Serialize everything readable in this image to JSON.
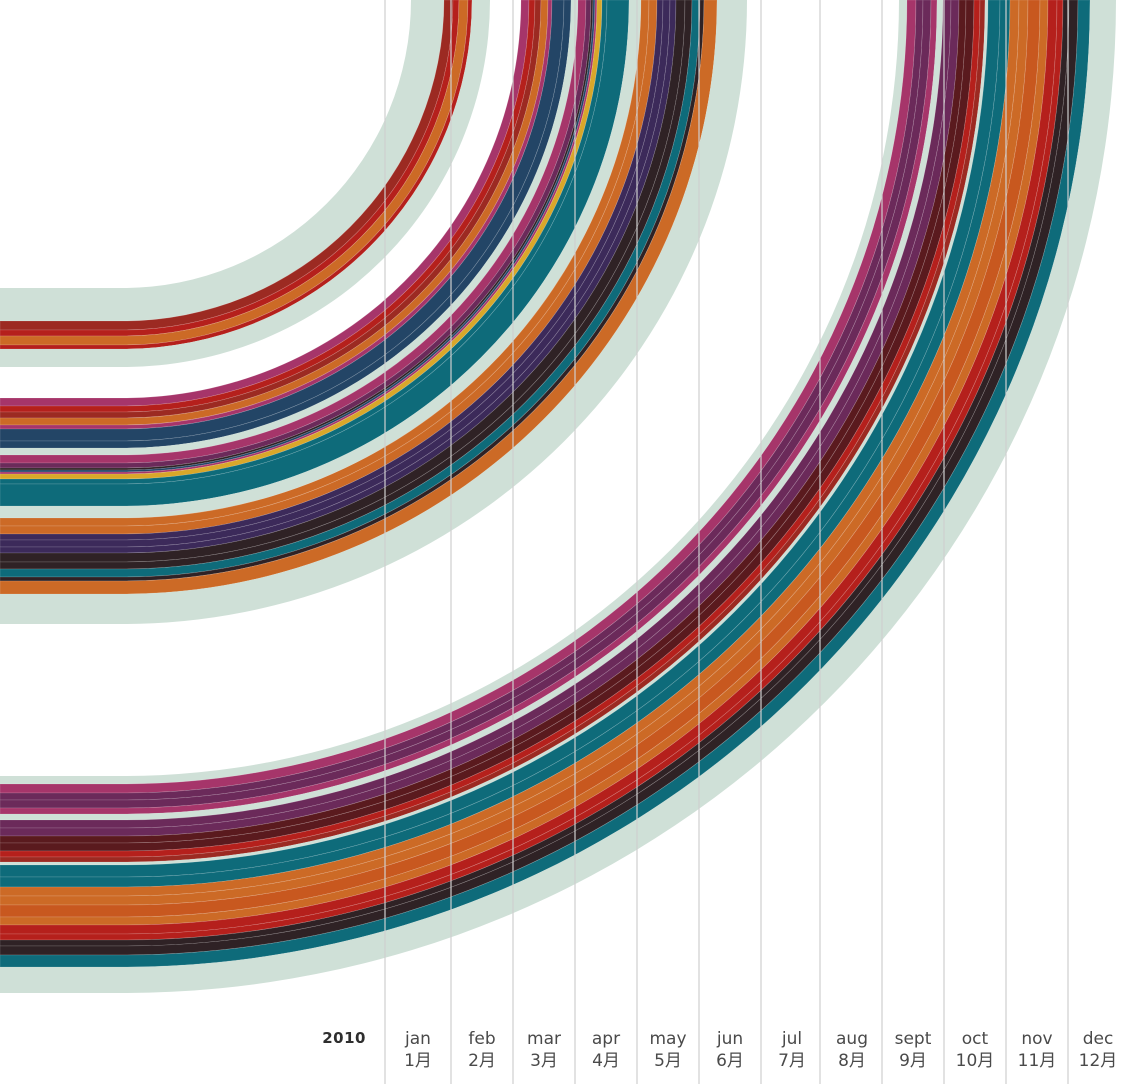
{
  "chart_data": {
    "type": "area",
    "year": "2010",
    "months": [
      {
        "en": "jan",
        "zh": "1月"
      },
      {
        "en": "feb",
        "zh": "2月"
      },
      {
        "en": "mar",
        "zh": "3月"
      },
      {
        "en": "apr",
        "zh": "4月"
      },
      {
        "en": "may",
        "zh": "5月"
      },
      {
        "en": "jun",
        "zh": "6月"
      },
      {
        "en": "jul",
        "zh": "7月"
      },
      {
        "en": "aug",
        "zh": "8月"
      },
      {
        "en": "sept",
        "zh": "9月"
      },
      {
        "en": "oct",
        "zh": "10月"
      },
      {
        "en": "nov",
        "zh": "11月"
      },
      {
        "en": "dec",
        "zh": "12月"
      }
    ],
    "palette": {
      "background_band": "#cfe0d7",
      "red": "#b5201c",
      "brick": "#9c2a22",
      "orange": "#cc6a26",
      "rust": "#c8581f",
      "magenta": "#a6356a",
      "plum": "#6b2a5a",
      "purple": "#3c2a5a",
      "navy": "#234566",
      "teal": "#0e6b7a",
      "darkbrown": "#2f2225",
      "maroon": "#5a1a1e",
      "gold": "#d9a72a"
    },
    "groups": [
      {
        "bands": [
          {
            "color": "background_band",
            "value": 33
          },
          {
            "color": "brick",
            "value": 9
          },
          {
            "color": "red",
            "value": 6
          },
          {
            "color": "orange",
            "value": 9
          },
          {
            "color": "red",
            "value": 4
          },
          {
            "color": "background_band",
            "value": 18
          }
        ]
      },
      {
        "bands": [
          {
            "color": "magenta",
            "value": 8
          },
          {
            "color": "red",
            "value": 6
          },
          {
            "color": "brick",
            "value": 6
          },
          {
            "color": "orange",
            "value": 7
          },
          {
            "color": "magenta",
            "value": 4
          },
          {
            "color": "navy",
            "value": 12
          },
          {
            "color": "navy",
            "value": 7
          },
          {
            "color": "background_band",
            "value": 7
          },
          {
            "color": "magenta",
            "value": 8
          },
          {
            "color": "plum",
            "value": 5
          },
          {
            "color": "darkbrown",
            "value": 2
          },
          {
            "color": "navy",
            "value": 2
          },
          {
            "color": "magenta",
            "value": 2
          },
          {
            "color": "gold",
            "value": 5
          },
          {
            "color": "teal",
            "value": 5
          },
          {
            "color": "teal",
            "value": 22
          },
          {
            "color": "background_band",
            "value": 12
          },
          {
            "color": "orange",
            "value": 8
          },
          {
            "color": "orange",
            "value": 8
          },
          {
            "color": "purple",
            "value": 6
          },
          {
            "color": "purple",
            "value": 7
          },
          {
            "color": "purple",
            "value": 6
          },
          {
            "color": "darkbrown",
            "value": 9
          },
          {
            "color": "darkbrown",
            "value": 7
          },
          {
            "color": "teal",
            "value": 8
          },
          {
            "color": "darkbrown",
            "value": 4
          },
          {
            "color": "orange",
            "value": 13
          },
          {
            "color": "background_band",
            "value": 30
          }
        ]
      },
      {
        "bands": [
          {
            "color": "background_band",
            "value": 8
          },
          {
            "color": "magenta",
            "value": 9
          },
          {
            "color": "plum",
            "value": 7
          },
          {
            "color": "plum",
            "value": 8
          },
          {
            "color": "magenta",
            "value": 6
          },
          {
            "color": "background_band",
            "value": 6
          },
          {
            "color": "plum",
            "value": 8
          },
          {
            "color": "plum",
            "value": 8
          },
          {
            "color": "maroon",
            "value": 7
          },
          {
            "color": "maroon",
            "value": 8
          },
          {
            "color": "red",
            "value": 6
          },
          {
            "color": "brick",
            "value": 5
          },
          {
            "color": "background_band",
            "value": 3
          },
          {
            "color": "teal",
            "value": 12
          },
          {
            "color": "teal",
            "value": 10
          },
          {
            "color": "orange",
            "value": 9
          },
          {
            "color": "orange",
            "value": 9
          },
          {
            "color": "rust",
            "value": 12
          },
          {
            "color": "orange",
            "value": 8
          },
          {
            "color": "red",
            "value": 9
          },
          {
            "color": "red",
            "value": 6
          },
          {
            "color": "darkbrown",
            "value": 6
          },
          {
            "color": "darkbrown",
            "value": 9
          },
          {
            "color": "teal",
            "value": 12
          },
          {
            "color": "background_band",
            "value": 26
          }
        ]
      }
    ]
  }
}
